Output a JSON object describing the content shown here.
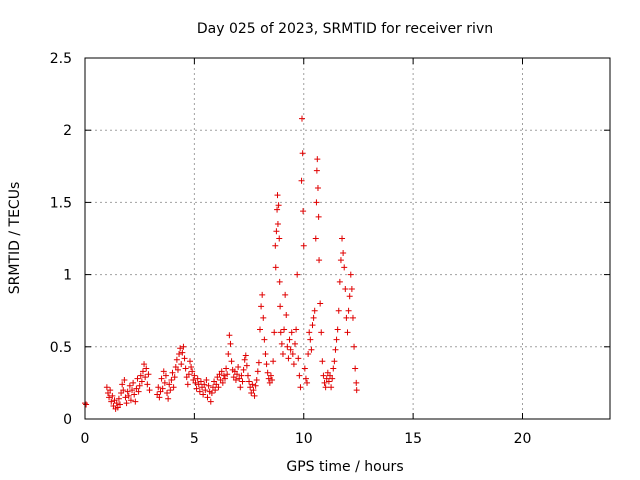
{
  "chart_data": {
    "type": "scatter",
    "title": "Day 025 of 2023, SRMTID for receiver rivn",
    "xlabel": "GPS time / hours",
    "ylabel": "SRMTID / TECUs",
    "xlim": [
      0,
      24
    ],
    "ylim": [
      0,
      2.5
    ],
    "xticks": [
      0,
      5,
      10,
      15,
      20
    ],
    "xtick_labels": [
      "0",
      "5",
      "10",
      "15",
      "20"
    ],
    "yticks": [
      0,
      0.5,
      1,
      1.5,
      2,
      2.5
    ],
    "ytick_labels": [
      "0",
      "0.5",
      "1",
      "1.5",
      "2",
      "2.5"
    ],
    "grid": true,
    "marker": "+",
    "color": "#e00000",
    "series": [
      {
        "name": "SRMTID",
        "points": [
          [
            0.0,
            0.11
          ],
          [
            0.05,
            0.1
          ],
          [
            1.0,
            0.22
          ],
          [
            1.05,
            0.18
          ],
          [
            1.1,
            0.15
          ],
          [
            1.15,
            0.2
          ],
          [
            1.2,
            0.12
          ],
          [
            1.25,
            0.16
          ],
          [
            1.3,
            0.09
          ],
          [
            1.35,
            0.13
          ],
          [
            1.4,
            0.07
          ],
          [
            1.45,
            0.11
          ],
          [
            1.5,
            0.08
          ],
          [
            1.55,
            0.14
          ],
          [
            1.6,
            0.1
          ],
          [
            1.65,
            0.18
          ],
          [
            1.7,
            0.24
          ],
          [
            1.75,
            0.2
          ],
          [
            1.8,
            0.27
          ],
          [
            1.85,
            0.15
          ],
          [
            1.9,
            0.11
          ],
          [
            1.95,
            0.19
          ],
          [
            2.0,
            0.16
          ],
          [
            2.05,
            0.23
          ],
          [
            2.1,
            0.13
          ],
          [
            2.15,
            0.2
          ],
          [
            2.2,
            0.25
          ],
          [
            2.25,
            0.17
          ],
          [
            2.3,
            0.12
          ],
          [
            2.35,
            0.21
          ],
          [
            2.4,
            0.28
          ],
          [
            2.45,
            0.19
          ],
          [
            2.5,
            0.23
          ],
          [
            2.55,
            0.3
          ],
          [
            2.6,
            0.26
          ],
          [
            2.65,
            0.33
          ],
          [
            2.7,
            0.38
          ],
          [
            2.75,
            0.29
          ],
          [
            2.8,
            0.35
          ],
          [
            2.85,
            0.24
          ],
          [
            2.9,
            0.31
          ],
          [
            2.95,
            0.2
          ],
          [
            3.3,
            0.17
          ],
          [
            3.35,
            0.22
          ],
          [
            3.4,
            0.15
          ],
          [
            3.45,
            0.19
          ],
          [
            3.5,
            0.28
          ],
          [
            3.55,
            0.21
          ],
          [
            3.6,
            0.33
          ],
          [
            3.65,
            0.25
          ],
          [
            3.7,
            0.3
          ],
          [
            3.75,
            0.18
          ],
          [
            3.8,
            0.14
          ],
          [
            3.85,
            0.24
          ],
          [
            3.9,
            0.2
          ],
          [
            3.95,
            0.27
          ],
          [
            4.0,
            0.32
          ],
          [
            4.05,
            0.22
          ],
          [
            4.1,
            0.29
          ],
          [
            4.15,
            0.36
          ],
          [
            4.2,
            0.41
          ],
          [
            4.25,
            0.34
          ],
          [
            4.3,
            0.45
          ],
          [
            4.35,
            0.49
          ],
          [
            4.4,
            0.38
          ],
          [
            4.45,
            0.46
          ],
          [
            4.5,
            0.5
          ],
          [
            4.55,
            0.42
          ],
          [
            4.6,
            0.35
          ],
          [
            4.65,
            0.29
          ],
          [
            4.7,
            0.24
          ],
          [
            4.75,
            0.31
          ],
          [
            4.8,
            0.4
          ],
          [
            4.85,
            0.36
          ],
          [
            4.9,
            0.33
          ],
          [
            4.95,
            0.27
          ],
          [
            5.0,
            0.3
          ],
          [
            5.05,
            0.25
          ],
          [
            5.1,
            0.21
          ],
          [
            5.15,
            0.28
          ],
          [
            5.2,
            0.24
          ],
          [
            5.25,
            0.19
          ],
          [
            5.3,
            0.26
          ],
          [
            5.35,
            0.22
          ],
          [
            5.4,
            0.17
          ],
          [
            5.45,
            0.24
          ],
          [
            5.5,
            0.2
          ],
          [
            5.55,
            0.27
          ],
          [
            5.6,
            0.15
          ],
          [
            5.65,
            0.23
          ],
          [
            5.7,
            0.19
          ],
          [
            5.75,
            0.12
          ],
          [
            5.8,
            0.18
          ],
          [
            5.85,
            0.22
          ],
          [
            5.9,
            0.26
          ],
          [
            5.95,
            0.2
          ],
          [
            6.0,
            0.24
          ],
          [
            6.05,
            0.29
          ],
          [
            6.1,
            0.22
          ],
          [
            6.15,
            0.31
          ],
          [
            6.2,
            0.27
          ],
          [
            6.25,
            0.33
          ],
          [
            6.3,
            0.25
          ],
          [
            6.35,
            0.3
          ],
          [
            6.4,
            0.28
          ],
          [
            6.45,
            0.35
          ],
          [
            6.5,
            0.31
          ],
          [
            6.55,
            0.45
          ],
          [
            6.6,
            0.58
          ],
          [
            6.65,
            0.52
          ],
          [
            6.7,
            0.4
          ],
          [
            6.75,
            0.34
          ],
          [
            6.8,
            0.29
          ],
          [
            6.85,
            0.33
          ],
          [
            6.9,
            0.27
          ],
          [
            6.95,
            0.31
          ],
          [
            7.0,
            0.36
          ],
          [
            7.05,
            0.28
          ],
          [
            7.1,
            0.22
          ],
          [
            7.15,
            0.3
          ],
          [
            7.2,
            0.26
          ],
          [
            7.25,
            0.34
          ],
          [
            7.3,
            0.41
          ],
          [
            7.35,
            0.44
          ],
          [
            7.4,
            0.37
          ],
          [
            7.45,
            0.3
          ],
          [
            7.5,
            0.26
          ],
          [
            7.55,
            0.22
          ],
          [
            7.6,
            0.18
          ],
          [
            7.65,
            0.24
          ],
          [
            7.7,
            0.2
          ],
          [
            7.75,
            0.16
          ],
          [
            7.8,
            0.23
          ],
          [
            7.85,
            0.27
          ],
          [
            7.9,
            0.33
          ],
          [
            7.95,
            0.39
          ],
          [
            8.0,
            0.62
          ],
          [
            8.05,
            0.78
          ],
          [
            8.1,
            0.86
          ],
          [
            8.15,
            0.7
          ],
          [
            8.2,
            0.55
          ],
          [
            8.25,
            0.45
          ],
          [
            8.3,
            0.38
          ],
          [
            8.35,
            0.32
          ],
          [
            8.4,
            0.28
          ],
          [
            8.45,
            0.25
          ],
          [
            8.5,
            0.3
          ],
          [
            8.55,
            0.27
          ],
          [
            8.6,
            0.4
          ],
          [
            8.65,
            0.6
          ],
          [
            8.7,
            1.2
          ],
          [
            8.72,
            1.05
          ],
          [
            8.75,
            1.3
          ],
          [
            8.78,
            1.45
          ],
          [
            8.8,
            1.55
          ],
          [
            8.82,
            1.35
          ],
          [
            8.85,
            1.48
          ],
          [
            8.88,
            1.25
          ],
          [
            8.9,
            0.95
          ],
          [
            8.92,
            0.78
          ],
          [
            8.95,
            0.6
          ],
          [
            9.0,
            0.52
          ],
          [
            9.05,
            0.45
          ],
          [
            9.1,
            0.62
          ],
          [
            9.15,
            0.86
          ],
          [
            9.2,
            0.72
          ],
          [
            9.25,
            0.5
          ],
          [
            9.3,
            0.42
          ],
          [
            9.35,
            0.55
          ],
          [
            9.4,
            0.48
          ],
          [
            9.45,
            0.6
          ],
          [
            9.5,
            0.45
          ],
          [
            9.55,
            0.38
          ],
          [
            9.6,
            0.52
          ],
          [
            9.65,
            0.62
          ],
          [
            9.7,
            1.0
          ],
          [
            9.75,
            0.42
          ],
          [
            9.8,
            0.3
          ],
          [
            9.85,
            0.22
          ],
          [
            9.9,
            1.65
          ],
          [
            9.92,
            2.08
          ],
          [
            9.95,
            1.84
          ],
          [
            9.97,
            1.44
          ],
          [
            10.0,
            1.2
          ],
          [
            10.05,
            0.35
          ],
          [
            10.1,
            0.28
          ],
          [
            10.15,
            0.25
          ],
          [
            10.2,
            0.45
          ],
          [
            10.25,
            0.6
          ],
          [
            10.3,
            0.55
          ],
          [
            10.35,
            0.48
          ],
          [
            10.4,
            0.65
          ],
          [
            10.45,
            0.7
          ],
          [
            10.5,
            0.75
          ],
          [
            10.55,
            1.25
          ],
          [
            10.58,
            1.5
          ],
          [
            10.6,
            1.72
          ],
          [
            10.62,
            1.8
          ],
          [
            10.65,
            1.6
          ],
          [
            10.68,
            1.4
          ],
          [
            10.7,
            1.1
          ],
          [
            10.75,
            0.8
          ],
          [
            10.8,
            0.6
          ],
          [
            10.85,
            0.4
          ],
          [
            10.9,
            0.3
          ],
          [
            10.95,
            0.25
          ],
          [
            11.0,
            0.22
          ],
          [
            11.05,
            0.28
          ],
          [
            11.1,
            0.32
          ],
          [
            11.15,
            0.26
          ],
          [
            11.2,
            0.3
          ],
          [
            11.25,
            0.22
          ],
          [
            11.3,
            0.28
          ],
          [
            11.35,
            0.35
          ],
          [
            11.4,
            0.4
          ],
          [
            11.45,
            0.48
          ],
          [
            11.5,
            0.55
          ],
          [
            11.55,
            0.62
          ],
          [
            11.6,
            0.75
          ],
          [
            11.65,
            0.95
          ],
          [
            11.7,
            1.1
          ],
          [
            11.75,
            1.25
          ],
          [
            11.8,
            1.15
          ],
          [
            11.85,
            1.05
          ],
          [
            11.9,
            0.9
          ],
          [
            11.95,
            0.7
          ],
          [
            12.0,
            0.6
          ],
          [
            12.05,
            0.75
          ],
          [
            12.1,
            0.85
          ],
          [
            12.15,
            1.0
          ],
          [
            12.2,
            0.9
          ],
          [
            12.25,
            0.7
          ],
          [
            12.3,
            0.5
          ],
          [
            12.35,
            0.35
          ],
          [
            12.4,
            0.25
          ],
          [
            12.42,
            0.2
          ]
        ]
      }
    ]
  }
}
